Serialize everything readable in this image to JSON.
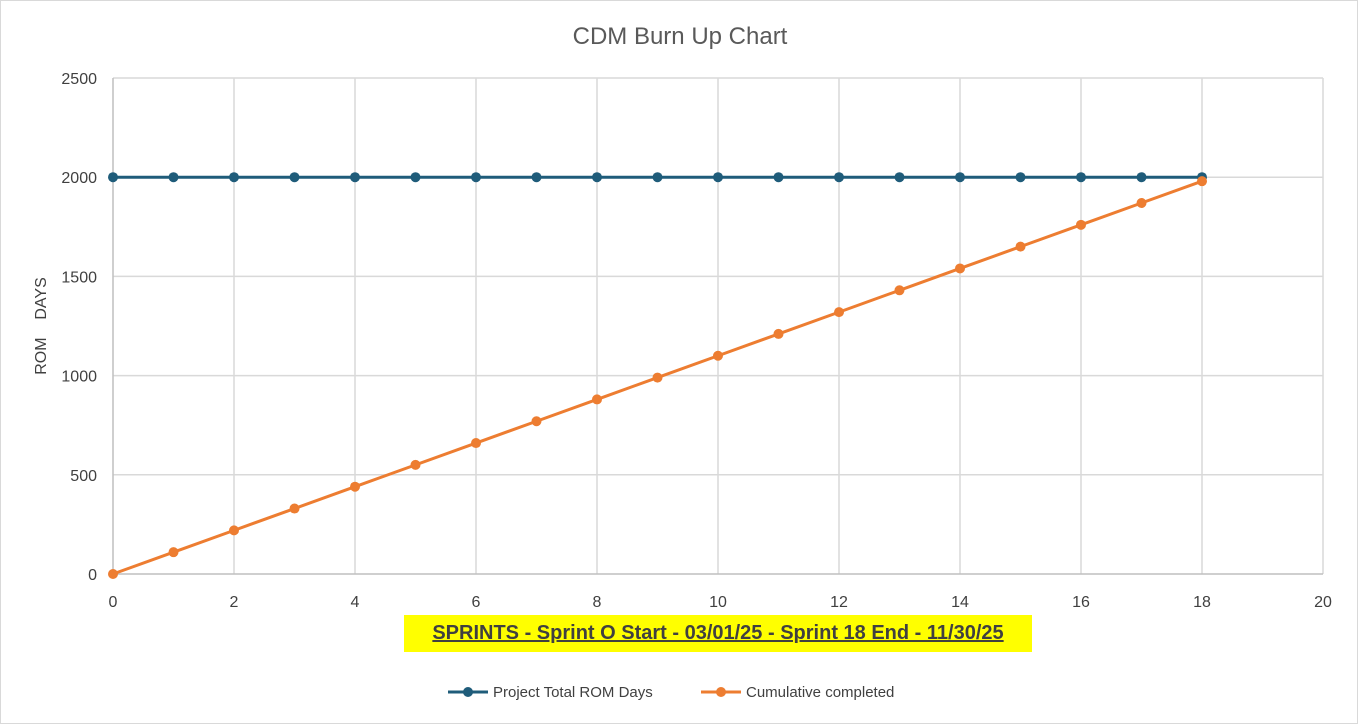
{
  "chart_data": {
    "type": "line",
    "title": "CDM Burn Up Chart",
    "xlabel": "SPRINTS - Sprint O Start - 03/01/25 - Sprint 18 End - 11/30/25",
    "ylabel": "ROM    DAYS",
    "xlim": [
      0,
      20
    ],
    "ylim": [
      0,
      2500
    ],
    "x_ticks": [
      0,
      2,
      4,
      6,
      8,
      10,
      12,
      14,
      16,
      18,
      20
    ],
    "y_ticks": [
      0,
      500,
      1000,
      1500,
      2000,
      2500
    ],
    "grid": true,
    "legend_position": "bottom",
    "x": [
      0,
      1,
      2,
      3,
      4,
      5,
      6,
      7,
      8,
      9,
      10,
      11,
      12,
      13,
      14,
      15,
      16,
      17,
      18
    ],
    "series": [
      {
        "name": "Project Total ROM Days",
        "color": "#1f5c7a",
        "values": [
          2000,
          2000,
          2000,
          2000,
          2000,
          2000,
          2000,
          2000,
          2000,
          2000,
          2000,
          2000,
          2000,
          2000,
          2000,
          2000,
          2000,
          2000,
          2000
        ]
      },
      {
        "name": "Cumulative completed",
        "color": "#ed7d31",
        "values": [
          0,
          110,
          220,
          330,
          440,
          550,
          660,
          770,
          880,
          990,
          1100,
          1210,
          1320,
          1430,
          1540,
          1650,
          1760,
          1870,
          1980
        ]
      }
    ]
  }
}
